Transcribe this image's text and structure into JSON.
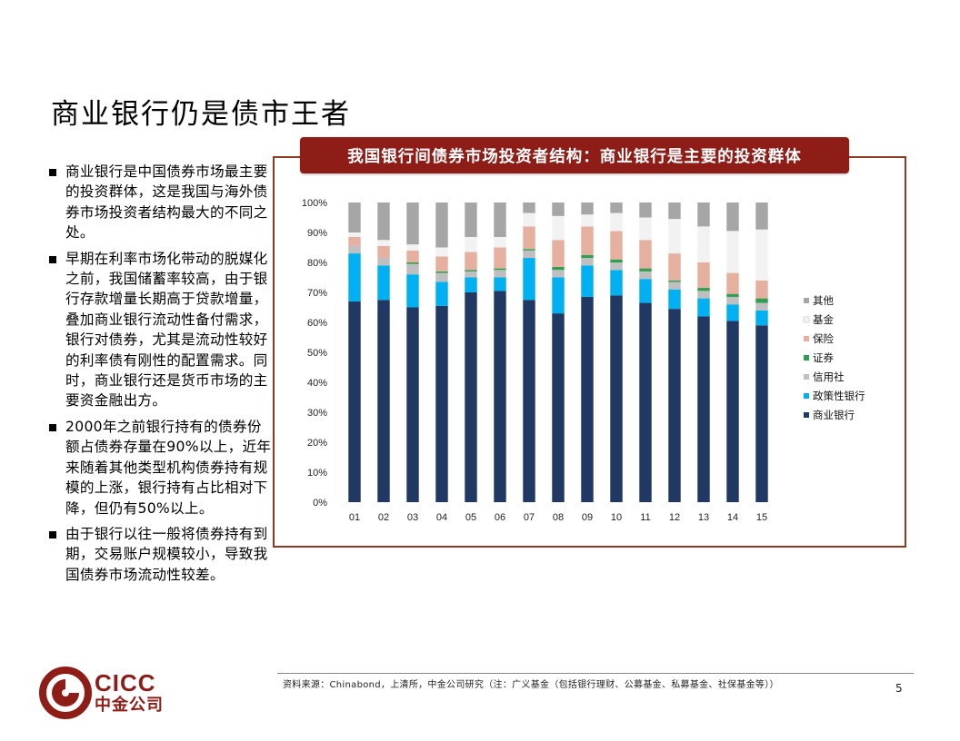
{
  "slide": {
    "title": "商业银行仍是债市王者",
    "bullets": [
      "商业银行是中国债券市场最主要的投资群体，这是我国与海外债券市场投资者结构最大的不同之处。",
      "早期在利率市场化带动的脱媒化之前，我国储蓄率较高，由于银行存款增量长期高于贷款增量，叠加商业银行流动性备付需求，银行对债券，尤其是流动性较好的利率债有刚性的配置需求。同时，商业银行还是货币市场的主要资金融出方。",
      "2000年之前银行持有的债券份额占债券存量在90%以上，近年来随着其他类型机构债券持有规模的上涨，银行持有占比相对下降，但仍有50%以上。",
      "由于银行以往一般将债券持有到期，交易账户规模较小，导致我国债券市场流动性较差。"
    ],
    "source": "资料来源：Chinabond，上清所，中金公司研究（注：广义基金（包括银行理财、公募基金、私募基金、社保基金等））",
    "page_number": "5",
    "logo": {
      "en": "CICC",
      "cn": "中金公司"
    },
    "brand_color": "#8e1c17"
  },
  "chart_data": {
    "type": "bar",
    "stacked": true,
    "title": "我国银行间债券市场投资者结构：商业银行是主要的投资群体",
    "categories": [
      "01",
      "02",
      "03",
      "04",
      "05",
      "06",
      "07",
      "08",
      "09",
      "10",
      "11",
      "12",
      "13",
      "14",
      "15"
    ],
    "ylim": [
      0,
      100
    ],
    "yticks": [
      "0%",
      "10%",
      "20%",
      "30%",
      "40%",
      "50%",
      "60%",
      "70%",
      "80%",
      "90%",
      "100%"
    ],
    "legend_position": "right",
    "series": [
      {
        "name": "商业银行",
        "color": "#1f3864",
        "values": [
          67,
          67.5,
          65,
          65.5,
          70,
          70.5,
          67.5,
          63,
          68.5,
          69,
          66.5,
          64.5,
          62,
          60.5,
          59
        ]
      },
      {
        "name": "政策性银行",
        "color": "#00b0f0",
        "values": [
          16,
          11.5,
          11,
          8,
          5,
          4.5,
          14,
          12,
          10.5,
          8.5,
          8,
          6.5,
          6,
          5.5,
          5
        ]
      },
      {
        "name": "信用社",
        "color": "#bfbfbf",
        "values": [
          2.5,
          2.5,
          3.5,
          3,
          2,
          2.5,
          2.5,
          2.5,
          2.5,
          2.5,
          2.5,
          2.5,
          2.5,
          2.5,
          2.5
        ]
      },
      {
        "name": "证券",
        "color": "#2e9e4f",
        "values": [
          0,
          0,
          0.5,
          0.5,
          0.5,
          0.5,
          0.5,
          1,
          1,
          1,
          1,
          0.5,
          1,
          1,
          1.5
        ]
      },
      {
        "name": "保险",
        "color": "#e6b0a1",
        "values": [
          3,
          4,
          4,
          5,
          6,
          7,
          7.5,
          9,
          9.5,
          9.5,
          9.5,
          9,
          8.5,
          7,
          6
        ]
      },
      {
        "name": "基金",
        "color": "#f2f2f2",
        "values": [
          1.5,
          2,
          2,
          3,
          5,
          3.5,
          4.5,
          8,
          4,
          6,
          7.5,
          11.5,
          12,
          14,
          17
        ]
      },
      {
        "name": "其他",
        "color": "#a6a6a6",
        "values": [
          10,
          12.5,
          14,
          15,
          11.5,
          11.5,
          3.5,
          4.5,
          4,
          3.5,
          5,
          5.5,
          8,
          9.5,
          9
        ]
      }
    ]
  }
}
